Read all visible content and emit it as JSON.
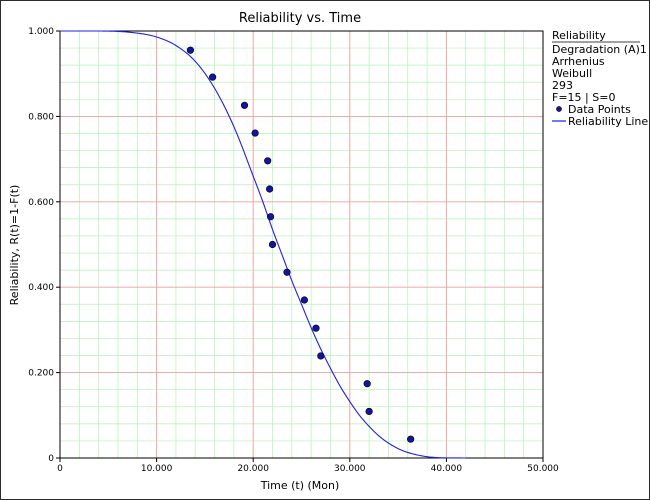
{
  "chart_data": {
    "type": "line",
    "title": "Reliability vs. Time",
    "xlabel": "Time (t) (Mon)",
    "ylabel": "Reliability, R(t)=1-F(t)",
    "xlim": [
      0,
      50000
    ],
    "ylim": [
      0,
      1
    ],
    "x_ticks": [
      0,
      10000,
      20000,
      30000,
      40000,
      50000
    ],
    "x_tick_labels": [
      "0",
      "10.000",
      "20.000",
      "30.000",
      "40.000",
      "50.000"
    ],
    "y_ticks": [
      0,
      0.2,
      0.4,
      0.6,
      0.8,
      1.0
    ],
    "y_tick_labels": [
      "0",
      "0.200",
      "0.400",
      "0.600",
      "0.800",
      "1.000"
    ],
    "grid": true,
    "legend_position": "right",
    "colors": {
      "line": "#1f1fe0",
      "points": "#1414a0",
      "major_grid": "#f2a0a0",
      "minor_grid": "#b6efb6"
    },
    "series": [
      {
        "name": "Data Points",
        "kind": "scatter",
        "x": [
          13500,
          15800,
          19100,
          20200,
          21500,
          21700,
          21800,
          22000,
          23500,
          25300,
          26500,
          27000,
          31800,
          32000,
          36300
        ],
        "y": [
          0.955,
          0.892,
          0.826,
          0.761,
          0.696,
          0.63,
          0.565,
          0.5,
          0.435,
          0.37,
          0.304,
          0.239,
          0.174,
          0.109,
          0.044
        ]
      },
      {
        "name": "Reliability Line",
        "kind": "line",
        "x": [
          0,
          4000,
          6000,
          8000,
          10000,
          12000,
          14000,
          16000,
          18000,
          20000,
          21000,
          22000,
          23000,
          24000,
          25000,
          26000,
          27000,
          28000,
          29000,
          30000,
          31000,
          32000,
          33000,
          34000,
          35000,
          36000,
          37000,
          38000,
          39000,
          40000,
          41000,
          42000
        ],
        "y": [
          1.0,
          1.0,
          0.999,
          0.995,
          0.986,
          0.966,
          0.929,
          0.866,
          0.776,
          0.66,
          0.6,
          0.535,
          0.475,
          0.415,
          0.36,
          0.305,
          0.255,
          0.21,
          0.168,
          0.132,
          0.1,
          0.074,
          0.052,
          0.035,
          0.022,
          0.013,
          0.007,
          0.003,
          0.001,
          0.0003,
          0.0001,
          0.0
        ]
      }
    ]
  },
  "legend": {
    "heading": "Reliability",
    "lines": [
      "Degradation (A)1",
      "Arrhenius",
      "Weibull",
      "293",
      "F=15 | S=0"
    ],
    "points_label": "Data Points",
    "line_label": "Reliability Line"
  }
}
